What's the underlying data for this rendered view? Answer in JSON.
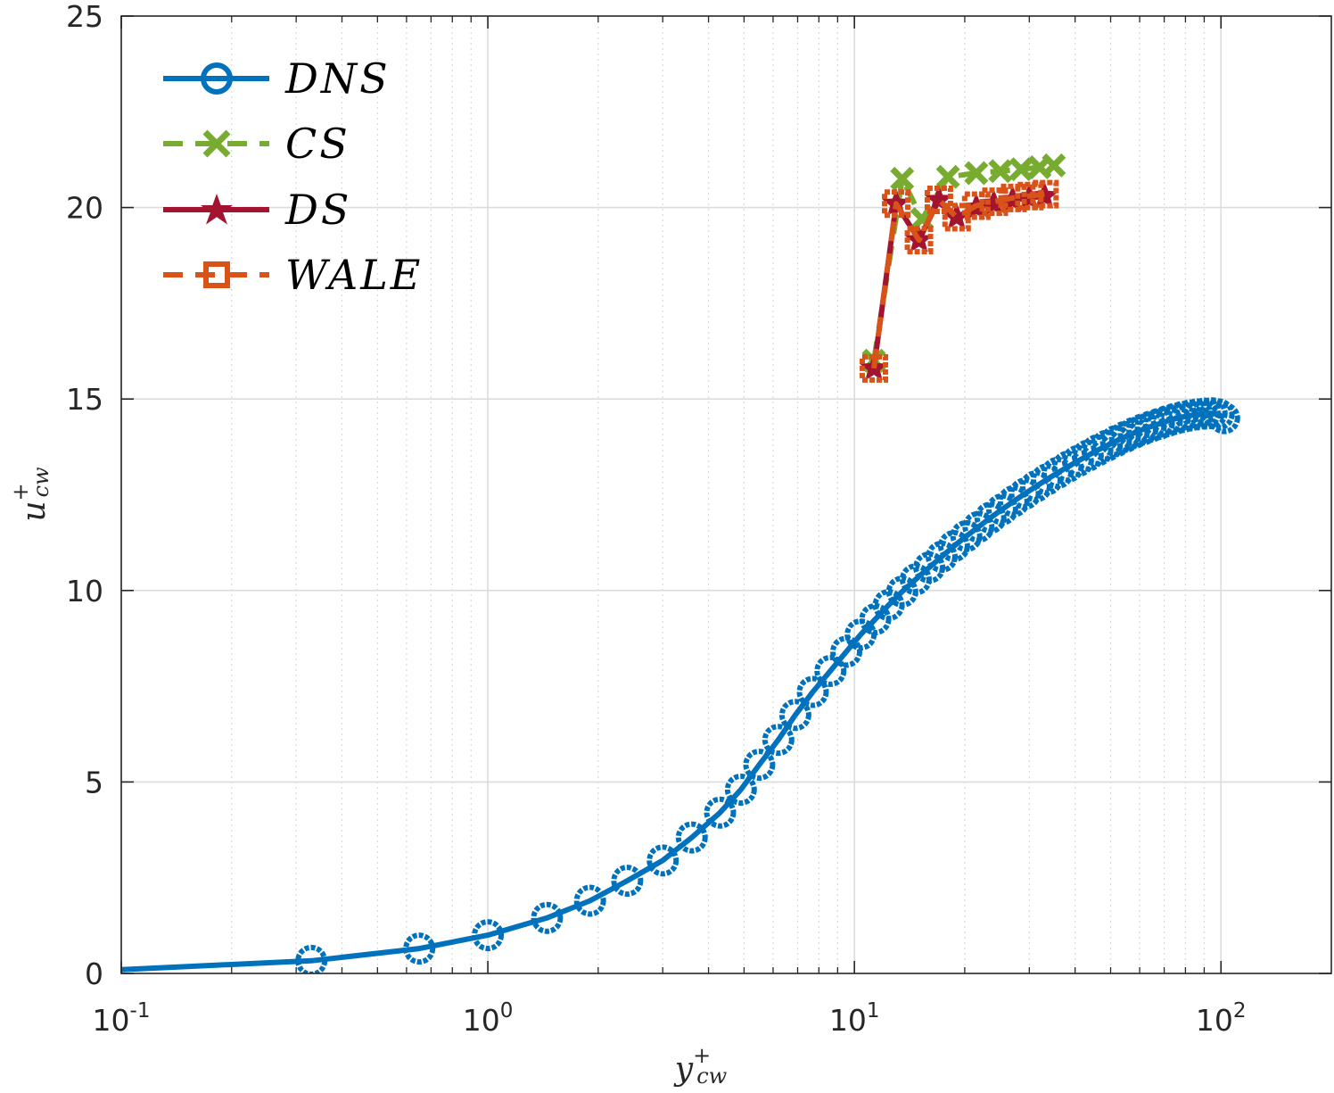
{
  "chart_data": {
    "type": "line",
    "xscale": "log",
    "xlim": [
      0.1,
      200
    ],
    "ylim": [
      0,
      25
    ],
    "grid": true,
    "legend_position": "top-left",
    "xlabel": {
      "base": "y",
      "sup": "+",
      "sub": "cw"
    },
    "ylabel": {
      "base": "u",
      "sup": "+",
      "sub": "cw"
    },
    "xticks": [
      {
        "value": 0.1,
        "base": "10",
        "exp": "-1"
      },
      {
        "value": 1,
        "base": "10",
        "exp": "0"
      },
      {
        "value": 10,
        "base": "10",
        "exp": "1"
      },
      {
        "value": 100,
        "base": "10",
        "exp": "2"
      }
    ],
    "yticks": [
      {
        "value": 0,
        "label": "0"
      },
      {
        "value": 5,
        "label": "5"
      },
      {
        "value": 10,
        "label": "10"
      },
      {
        "value": 15,
        "label": "15"
      },
      {
        "value": 20,
        "label": "20"
      },
      {
        "value": 25,
        "label": "25"
      }
    ],
    "series": [
      {
        "name": "DNS",
        "label": "DNS",
        "color": "#0072BD",
        "marker": "circle",
        "dash": "solid",
        "x": [
          0.1,
          0.33,
          0.65,
          1.0,
          1.45,
          1.9,
          2.4,
          3.0,
          3.6,
          4.3,
          4.9,
          5.5,
          6.2,
          6.9,
          7.7,
          8.6,
          9.5,
          10.4,
          11.4,
          12.4,
          13.5,
          14.7,
          16.0,
          17.3,
          18.7,
          20.2,
          21.8,
          23.5,
          25.3,
          27.2,
          29.2,
          31.3,
          33.5,
          35.8,
          38.2,
          40.7,
          43.3,
          46.0,
          48.8,
          51.7,
          54.7,
          57.8,
          61.0,
          64.3,
          67.7,
          71.2,
          74.8,
          78.5,
          82.3,
          86.2,
          90.2,
          94.3,
          98.5,
          102.0
        ],
        "y": [
          0.1,
          0.33,
          0.65,
          1.0,
          1.45,
          1.9,
          2.42,
          2.95,
          3.55,
          4.2,
          4.8,
          5.45,
          6.1,
          6.75,
          7.35,
          7.9,
          8.4,
          8.85,
          9.25,
          9.62,
          9.97,
          10.29,
          10.6,
          10.88,
          11.16,
          11.42,
          11.66,
          11.9,
          12.12,
          12.33,
          12.53,
          12.72,
          12.9,
          13.07,
          13.23,
          13.38,
          13.52,
          13.66,
          13.78,
          13.9,
          14.01,
          14.11,
          14.2,
          14.28,
          14.35,
          14.42,
          14.48,
          14.53,
          14.57,
          14.6,
          14.62,
          14.63,
          14.6,
          14.5
        ]
      },
      {
        "name": "CS",
        "label": "CS",
        "color": "#77AC30",
        "marker": "x",
        "dash": "dashed",
        "x": [
          11.3,
          13.5,
          15.3,
          18.0,
          21.5,
          25.0,
          28.5,
          32.0,
          35.0
        ],
        "y": [
          16.0,
          20.75,
          19.7,
          20.8,
          20.9,
          20.95,
          21.0,
          21.05,
          21.1
        ]
      },
      {
        "name": "DS",
        "label": "DS",
        "color": "#A2142F",
        "marker": "star",
        "dash": "solid",
        "x": [
          11.3,
          13.0,
          15.0,
          17.0,
          19.0,
          21.5,
          24.0,
          27.0,
          30.0,
          33.0
        ],
        "y": [
          15.8,
          20.1,
          19.15,
          20.2,
          19.75,
          20.0,
          20.1,
          20.2,
          20.25,
          20.3
        ]
      },
      {
        "name": "WALE",
        "label": "WALE",
        "color": "#D95319",
        "marker": "square",
        "dash": "dashed",
        "x": [
          11.3,
          13.0,
          15.0,
          17.0,
          19.0,
          21.5,
          24.0,
          27.0,
          30.0,
          33.0
        ],
        "y": [
          15.8,
          20.1,
          19.15,
          20.2,
          19.75,
          20.05,
          20.15,
          20.25,
          20.3,
          20.35
        ]
      }
    ]
  }
}
